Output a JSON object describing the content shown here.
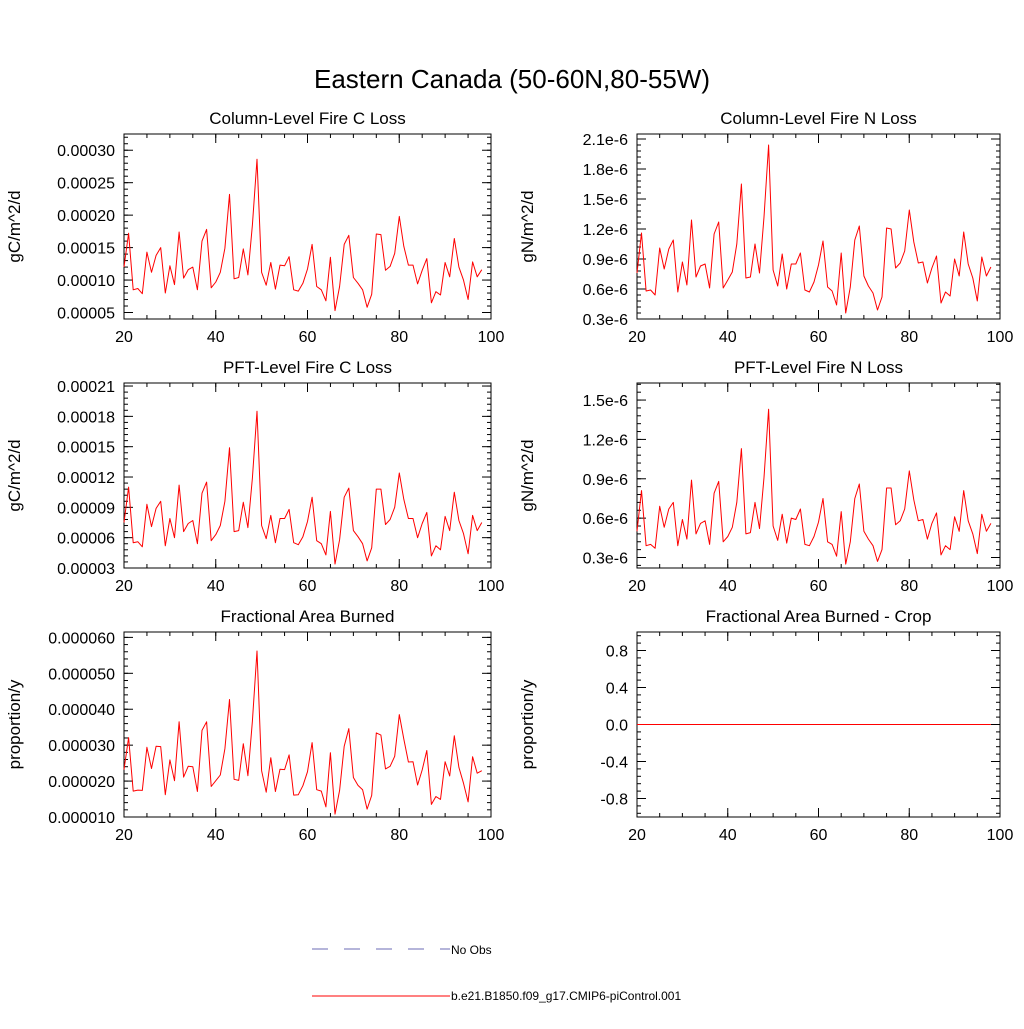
{
  "title": "Eastern Canada (50-60N,80-55W)",
  "colors": {
    "model": "#ff0000",
    "obs": "#6b6bb5",
    "axis": "#000000"
  },
  "legend": {
    "obs_label": "No Obs",
    "model_label": "b.e21.B1850.f09_g17.CMIP6-piControl.001"
  },
  "chart_data": [
    {
      "type": "line",
      "title": "Column-Level Fire C Loss",
      "xlabel": "",
      "ylabel": "gC/m^2/d",
      "xlim": [
        20,
        100
      ],
      "ylim": [
        4e-05,
        0.000325
      ],
      "xticks": [
        20,
        40,
        60,
        80,
        100
      ],
      "xtick_labels": [
        "20",
        "40",
        "60",
        "80",
        "100"
      ],
      "yticks": [
        5e-05,
        0.0001,
        0.00015,
        0.0002,
        0.00025,
        0.0003
      ],
      "ytick_labels": [
        "0.00005",
        "0.00010",
        "0.00015",
        "0.00020",
        "0.00025",
        "0.00030"
      ],
      "series": [
        {
          "name": "b.e21.B1850.f09_g17.CMIP6-piControl.001",
          "x0": 20,
          "dx": 1,
          "values": [
            0.00012,
            0.000172,
            8.5e-05,
            8.7e-05,
            7.9e-05,
            0.000143,
            0.000112,
            0.000138,
            0.00015,
            8e-05,
            0.000122,
            9.3e-05,
            0.000174,
            0.000103,
            0.000116,
            0.00012,
            8.5e-05,
            0.00016,
            0.000178,
            8.8e-05,
            9.7e-05,
            0.000112,
            0.000149,
            0.000232,
            0.000102,
            0.000104,
            0.000148,
            0.000108,
            0.000185,
            0.000286,
            0.000112,
            9.2e-05,
            0.000127,
            8.6e-05,
            0.000123,
            0.000122,
            0.000136,
            8.5e-05,
            8.3e-05,
            9.5e-05,
            0.000117,
            0.000155,
            9e-05,
            8.5e-05,
            6.8e-05,
            0.000135,
            5.3e-05,
            9e-05,
            0.000155,
            0.000169,
            0.000104,
            9.5e-05,
            8.5e-05,
            5.8e-05,
            7.8e-05,
            0.000171,
            0.00017,
            0.000115,
            0.000121,
            0.000141,
            0.000198,
            0.000152,
            0.000123,
            0.000123,
            9.4e-05,
            0.000115,
            0.000133,
            6.5e-05,
            8.2e-05,
            7.7e-05,
            0.000127,
            0.000105,
            0.000164,
            0.00012,
            0.0001,
            7e-05,
            0.000128,
            0.000105,
            0.000116
          ]
        }
      ]
    },
    {
      "type": "line",
      "title": "Column-Level Fire N Loss",
      "xlabel": "",
      "ylabel": "gN/m^2/d",
      "xlim": [
        20,
        100
      ],
      "ylim": [
        3e-07,
        2.15e-06
      ],
      "xticks": [
        20,
        40,
        60,
        80,
        100
      ],
      "xtick_labels": [
        "20",
        "40",
        "60",
        "80",
        "100"
      ],
      "yticks": [
        3e-07,
        6e-07,
        9e-07,
        1.2e-06,
        1.5e-06,
        1.8e-06,
        2.1e-06
      ],
      "ytick_labels": [
        "0.3e-6",
        "0.6e-6",
        "0.9e-6",
        "1.2e-6",
        "1.5e-6",
        "1.8e-6",
        "2.1e-6"
      ],
      "series": [
        {
          "name": "b.e21.B1850.f09_g17.CMIP6-piControl.001",
          "x0": 20,
          "dx": 1,
          "values": [
            7.6e-07,
            1.16e-06,
            5.8e-07,
            5.9e-07,
            5.4e-07,
            1.01e-06,
            8e-07,
            1e-06,
            1.09e-06,
            5.7e-07,
            8.7e-07,
            6.4e-07,
            1.29e-06,
            7.2e-07,
            8.3e-07,
            8.5e-07,
            6.1e-07,
            1.15e-06,
            1.27e-06,
            6.1e-07,
            6.9e-07,
            7.7e-07,
            1.05e-06,
            1.65e-06,
            7.1e-07,
            7.2e-07,
            1.05e-06,
            7.6e-07,
            1.32e-06,
            2.04e-06,
            7.9e-07,
            6.3e-07,
            9.5e-07,
            6e-07,
            8.5e-07,
            8.5e-07,
            9.6e-07,
            5.9e-07,
            5.7e-07,
            6.7e-07,
            8.4e-07,
            1.08e-06,
            6.2e-07,
            5.8e-07,
            4.4e-07,
            9.6e-07,
            3.6e-07,
            6.2e-07,
            1.09e-06,
            1.23e-06,
            7.3e-07,
            6.3e-07,
            5.6e-07,
            3.9e-07,
            5.2e-07,
            1.21e-06,
            1.2e-06,
            8.1e-07,
            8.6e-07,
            9.8e-07,
            1.39e-06,
            1.07e-06,
            8.6e-07,
            8.7e-07,
            6.6e-07,
            8.1e-07,
            9.3e-07,
            4.6e-07,
            5.7e-07,
            5.3e-07,
            9e-07,
            7.3e-07,
            1.17e-06,
            8.5e-07,
            7.1e-07,
            4.8e-07,
            9.2e-07,
            7.3e-07,
            8.2e-07
          ]
        }
      ]
    },
    {
      "type": "line",
      "title": "PFT-Level Fire C Loss",
      "xlabel": "",
      "ylabel": "gC/m^2/d",
      "xlim": [
        20,
        100
      ],
      "ylim": [
        3e-05,
        0.000213
      ],
      "xticks": [
        20,
        40,
        60,
        80,
        100
      ],
      "xtick_labels": [
        "20",
        "40",
        "60",
        "80",
        "100"
      ],
      "yticks": [
        3e-05,
        6e-05,
        9e-05,
        0.00012,
        0.00015,
        0.00018,
        0.00021
      ],
      "ytick_labels": [
        "0.00003",
        "0.00006",
        "0.00009",
        "0.00012",
        "0.00015",
        "0.00018",
        "0.00021"
      ],
      "series": [
        {
          "name": "b.e21.B1850.f09_g17.CMIP6-piControl.001",
          "x0": 20,
          "dx": 1,
          "values": [
            7.5e-05,
            0.00011,
            5.5e-05,
            5.6e-05,
            5.1e-05,
            9.3e-05,
            7.1e-05,
            8.9e-05,
            9.6e-05,
            5.2e-05,
            7.9e-05,
            6e-05,
            0.000112,
            6.6e-05,
            7.4e-05,
            7.7e-05,
            5.4e-05,
            0.000104,
            0.000115,
            5.7e-05,
            6.3e-05,
            7.2e-05,
            9.6e-05,
            0.000149,
            6.6e-05,
            6.7e-05,
            9.5e-05,
            7e-05,
            0.000119,
            0.000185,
            7.2e-05,
            5.9e-05,
            8.2e-05,
            5.5e-05,
            7.9e-05,
            7.9e-05,
            8.8e-05,
            5.5e-05,
            5.3e-05,
            6.1e-05,
            7.6e-05,
            0.0001,
            5.7e-05,
            5.4e-05,
            4.3e-05,
            8.6e-05,
            3.4e-05,
            5.8e-05,
            0.0001,
            0.000109,
            6.7e-05,
            6.1e-05,
            5.4e-05,
            3.7e-05,
            5e-05,
            0.000108,
            0.000108,
            7.3e-05,
            7.8e-05,
            9e-05,
            0.000124,
            9.8e-05,
            7.9e-05,
            7.9e-05,
            6e-05,
            7.4e-05,
            8.5e-05,
            4.2e-05,
            5.2e-05,
            4.8e-05,
            8.1e-05,
            6.7e-05,
            0.000105,
            7.7e-05,
            6.4e-05,
            4.4e-05,
            8.2e-05,
            6.7e-05,
            7.5e-05
          ]
        }
      ]
    },
    {
      "type": "line",
      "title": "PFT-Level Fire N Loss",
      "xlabel": "",
      "ylabel": "gN/m^2/d",
      "xlim": [
        20,
        100
      ],
      "ylim": [
        2.2e-07,
        1.63e-06
      ],
      "xticks": [
        20,
        40,
        60,
        80,
        100
      ],
      "xtick_labels": [
        "20",
        "40",
        "60",
        "80",
        "100"
      ],
      "yticks": [
        3e-07,
        6e-07,
        9e-07,
        1.2e-06,
        1.5e-06
      ],
      "ytick_labels": [
        "0.3e-6",
        "0.6e-6",
        "0.9e-6",
        "1.2e-6",
        "1.5e-6"
      ],
      "series": [
        {
          "name": "b.e21.B1850.f09_g17.CMIP6-piControl.001",
          "x0": 20,
          "dx": 1,
          "values": [
            5e-07,
            8.1e-07,
            3.9e-07,
            4e-07,
            3.7e-07,
            6.9e-07,
            5.3e-07,
            6.7e-07,
            7.2e-07,
            3.9e-07,
            5.9e-07,
            4.4e-07,
            8.9e-07,
            4.8e-07,
            5.6e-07,
            5.8e-07,
            4e-07,
            7.9e-07,
            8.8e-07,
            4.2e-07,
            4.6e-07,
            5.3e-07,
            7.2e-07,
            1.13e-06,
            4.8e-07,
            4.9e-07,
            7.2e-07,
            5.2e-07,
            9.1e-07,
            1.43e-06,
            5.4e-07,
            4.3e-07,
            6.3e-07,
            4.1e-07,
            6e-07,
            5.9e-07,
            6.7e-07,
            4e-07,
            3.9e-07,
            4.6e-07,
            5.7e-07,
            7.5e-07,
            4.2e-07,
            4e-07,
            3.1e-07,
            6.5e-07,
            2.5e-07,
            4.2e-07,
            7.5e-07,
            8.6e-07,
            5e-07,
            4.4e-07,
            3.9e-07,
            2.7e-07,
            3.6e-07,
            8.3e-07,
            8.3e-07,
            5.5e-07,
            5.8e-07,
            6.7e-07,
            9.6e-07,
            7.4e-07,
            5.8e-07,
            5.9e-07,
            4.4e-07,
            5.6e-07,
            6.4e-07,
            3.2e-07,
            3.9e-07,
            3.6e-07,
            6.1e-07,
            5e-07,
            8.1e-07,
            5.8e-07,
            4.8e-07,
            3.3e-07,
            6.3e-07,
            5e-07,
            5.6e-07
          ]
        }
      ]
    },
    {
      "type": "line",
      "title": "Fractional Area Burned",
      "xlabel": "",
      "ylabel": "proportion/y",
      "xlim": [
        20,
        100
      ],
      "ylim": [
        1e-05,
        6.15e-05
      ],
      "xticks": [
        20,
        40,
        60,
        80,
        100
      ],
      "xtick_labels": [
        "20",
        "40",
        "60",
        "80",
        "100"
      ],
      "yticks": [
        1e-05,
        2e-05,
        3e-05,
        4e-05,
        5e-05,
        6e-05
      ],
      "ytick_labels": [
        "0.000010",
        "0.000020",
        "0.000030",
        "0.000040",
        "0.000050",
        "0.000060"
      ],
      "series": [
        {
          "name": "b.e21.B1850.f09_g17.CMIP6-piControl.001",
          "x0": 20,
          "dx": 1,
          "values": [
            2.32e-05,
            3.21e-05,
            1.72e-05,
            1.75e-05,
            1.74e-05,
            2.94e-05,
            2.35e-05,
            2.97e-05,
            2.96e-05,
            1.62e-05,
            2.59e-05,
            2.01e-05,
            3.65e-05,
            2.11e-05,
            2.41e-05,
            2.4e-05,
            1.71e-05,
            3.41e-05,
            3.65e-05,
            1.85e-05,
            2.01e-05,
            2.17e-05,
            2.9e-05,
            4.27e-05,
            2.05e-05,
            2.02e-05,
            3.04e-05,
            2.15e-05,
            3.67e-05,
            5.62e-05,
            2.29e-05,
            1.69e-05,
            2.65e-05,
            1.71e-05,
            2.33e-05,
            2.32e-05,
            2.73e-05,
            1.61e-05,
            1.62e-05,
            1.87e-05,
            2.26e-05,
            3.07e-05,
            1.76e-05,
            1.72e-05,
            1.28e-05,
            2.79e-05,
            1.08e-05,
            1.74e-05,
            2.97e-05,
            3.46e-05,
            2.1e-05,
            1.88e-05,
            1.76e-05,
            1.22e-05,
            1.6e-05,
            3.34e-05,
            3.28e-05,
            2.34e-05,
            2.41e-05,
            2.69e-05,
            3.85e-05,
            3.17e-05,
            2.53e-05,
            2.54e-05,
            1.89e-05,
            2.31e-05,
            2.85e-05,
            1.35e-05,
            1.57e-05,
            1.49e-05,
            2.54e-05,
            2.14e-05,
            3.26e-05,
            2.38e-05,
            1.94e-05,
            1.42e-05,
            2.68e-05,
            2.22e-05,
            2.29e-05
          ]
        }
      ]
    },
    {
      "type": "line",
      "title": "Fractional Area Burned - Crop",
      "xlabel": "",
      "ylabel": "proportion/y",
      "xlim": [
        20,
        100
      ],
      "ylim": [
        -1,
        1
      ],
      "xticks": [
        20,
        40,
        60,
        80,
        100
      ],
      "xtick_labels": [
        "20",
        "40",
        "60",
        "80",
        "100"
      ],
      "yticks": [
        -0.8,
        -0.4,
        0,
        0.4,
        0.8
      ],
      "ytick_labels": [
        "-0.8",
        "-0.4",
        "0.0",
        "0.4",
        "0.8"
      ],
      "series": [
        {
          "name": "b.e21.B1850.f09_g17.CMIP6-piControl.001",
          "x0": 20,
          "dx": 1,
          "values": [
            0,
            0,
            0,
            0,
            0,
            0,
            0,
            0,
            0,
            0,
            0,
            0,
            0,
            0,
            0,
            0,
            0,
            0,
            0,
            0,
            0,
            0,
            0,
            0,
            0,
            0,
            0,
            0,
            0,
            0,
            0,
            0,
            0,
            0,
            0,
            0,
            0,
            0,
            0,
            0,
            0,
            0,
            0,
            0,
            0,
            0,
            0,
            0,
            0,
            0,
            0,
            0,
            0,
            0,
            0,
            0,
            0,
            0,
            0,
            0,
            0,
            0,
            0,
            0,
            0,
            0,
            0,
            0,
            0,
            0,
            0,
            0,
            0,
            0,
            0,
            0,
            0,
            0,
            0
          ]
        }
      ]
    }
  ]
}
